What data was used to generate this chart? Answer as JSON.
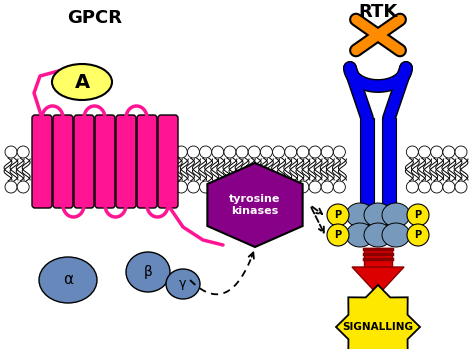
{
  "bg_color": "#ffffff",
  "gpcr_label": "GPCR",
  "rtk_label": "RTK",
  "signalling_label": "SIGNALLING",
  "tyrosine_label": "tyrosine\nkinases",
  "A_label": "A",
  "alpha_label": "α",
  "beta_label": "β",
  "gamma_label": "γ",
  "P_label": "P",
  "gpcr_color": "#FF1493",
  "rtk_color": "#0000EE",
  "ligand_color": "#FF8C00",
  "phospho_circle_color": "#7799BB",
  "phospho_label_color": "#FFE800",
  "agonist_fill": "#FFFF66",
  "g_protein_color": "#6688BB",
  "tyrosine_box_color": "#880088",
  "signalling_color": "#FFE800",
  "red_arrow_color": "#DD0000",
  "dark_red": "#880000"
}
